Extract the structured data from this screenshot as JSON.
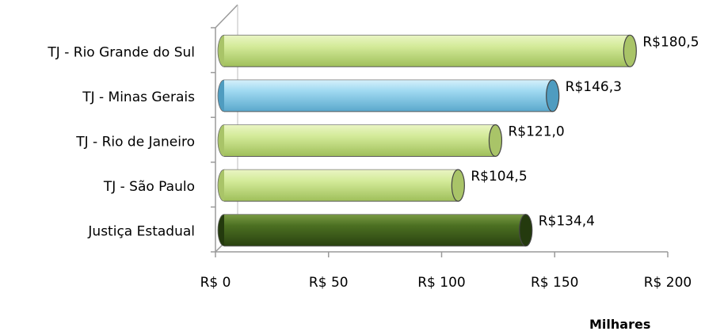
{
  "chart_data": {
    "type": "bar",
    "orientation": "horizontal",
    "categories": [
      "TJ - Rio Grande do Sul",
      "TJ - Minas Gerais",
      "TJ - Rio de Janeiro",
      "TJ - São Paulo",
      "Justiça Estadual"
    ],
    "values": [
      180.5,
      146.3,
      121.0,
      104.5,
      134.4
    ],
    "value_labels": [
      "R$180,5",
      "R$146,3",
      "R$121,0",
      "R$104,5",
      "R$134,4"
    ],
    "bar_colors": [
      "#c8e08a",
      "#8fd0ec",
      "#c8e08a",
      "#c8e08a",
      "#3d5f1c"
    ],
    "xlim": [
      0,
      200
    ],
    "xticks": [
      0,
      50,
      100,
      150,
      200
    ],
    "xtick_labels": [
      "R$ 0",
      "R$ 50",
      "R$ 100",
      "R$ 150",
      "R$ 200"
    ],
    "unit_label": "Milhares",
    "grid": false,
    "legend": "none",
    "style": "3d-cylinder"
  }
}
